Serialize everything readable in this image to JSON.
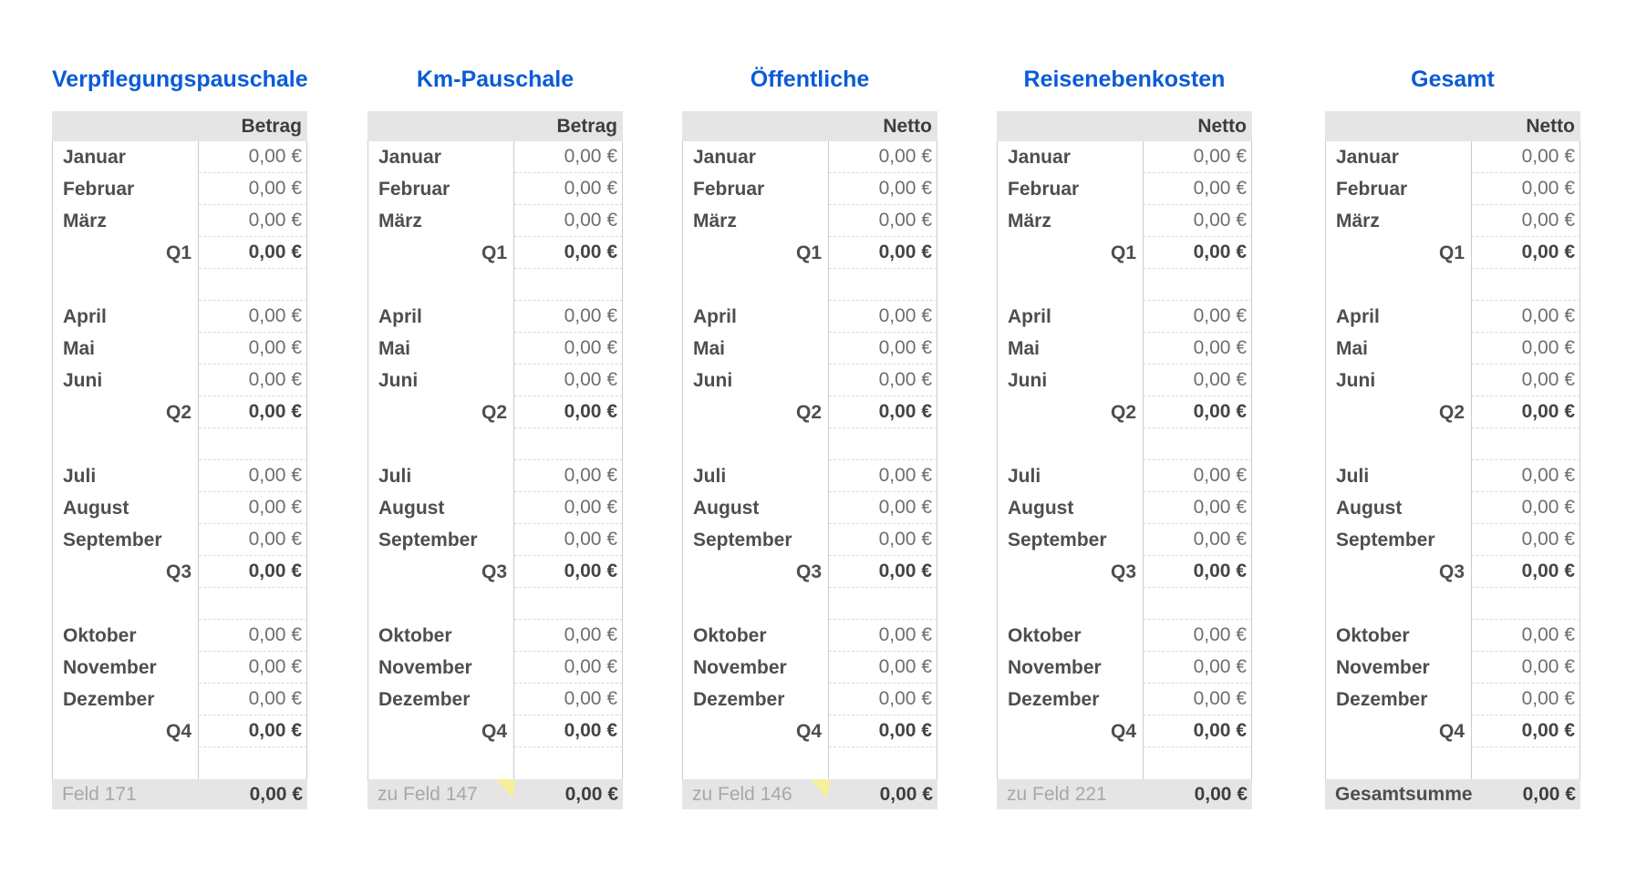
{
  "colors": {
    "title_blue": "#0b5bd7",
    "header_footer_bg": "#e5e5e5",
    "solid_border": "#cbcbcb",
    "dotted_border": "#d9d9d9",
    "comment_yellow": "#f8ef9d",
    "month_text": "#4e4e4e",
    "value_text": "#6e6e6e"
  },
  "tables": [
    {
      "title": "Verpflegungspauschale",
      "value_column_header": "Betrag",
      "rows": [
        {
          "label": "Januar",
          "value": "0,00 €",
          "style": "month"
        },
        {
          "label": "Februar",
          "value": "0,00 €",
          "style": "month"
        },
        {
          "label": "März",
          "value": "0,00 €",
          "style": "month"
        },
        {
          "label": "Q1",
          "value": "0,00 €",
          "style": "quarter"
        },
        {
          "label": "",
          "value": "",
          "style": "spacer"
        },
        {
          "label": "April",
          "value": "0,00 €",
          "style": "month"
        },
        {
          "label": "Mai",
          "value": "0,00 €",
          "style": "month"
        },
        {
          "label": "Juni",
          "value": "0,00 €",
          "style": "month"
        },
        {
          "label": "Q2",
          "value": "0,00 €",
          "style": "quarter"
        },
        {
          "label": "",
          "value": "",
          "style": "spacer"
        },
        {
          "label": "Juli",
          "value": "0,00 €",
          "style": "month"
        },
        {
          "label": "August",
          "value": "0,00 €",
          "style": "month"
        },
        {
          "label": "September",
          "value": "0,00 €",
          "style": "month"
        },
        {
          "label": "Q3",
          "value": "0,00 €",
          "style": "quarter"
        },
        {
          "label": "",
          "value": "",
          "style": "spacer"
        },
        {
          "label": "Oktober",
          "value": "0,00 €",
          "style": "month"
        },
        {
          "label": "November",
          "value": "0,00 €",
          "style": "month"
        },
        {
          "label": "Dezember",
          "value": "0,00 €",
          "style": "month"
        },
        {
          "label": "Q4",
          "value": "0,00 €",
          "style": "quarter"
        },
        {
          "label": "",
          "value": "",
          "style": "spacer"
        }
      ],
      "footer": {
        "label": "Feld 171",
        "value": "0,00 €",
        "label_bold": false,
        "comment_marker": false
      }
    },
    {
      "title": "Km-Pauschale",
      "value_column_header": "Betrag",
      "rows": [
        {
          "label": "Januar",
          "value": "0,00 €",
          "style": "month"
        },
        {
          "label": "Februar",
          "value": "0,00 €",
          "style": "month"
        },
        {
          "label": "März",
          "value": "0,00 €",
          "style": "month"
        },
        {
          "label": "Q1",
          "value": "0,00 €",
          "style": "quarter"
        },
        {
          "label": "",
          "value": "",
          "style": "spacer"
        },
        {
          "label": "April",
          "value": "0,00 €",
          "style": "month"
        },
        {
          "label": "Mai",
          "value": "0,00 €",
          "style": "month"
        },
        {
          "label": "Juni",
          "value": "0,00 €",
          "style": "month"
        },
        {
          "label": "Q2",
          "value": "0,00 €",
          "style": "quarter"
        },
        {
          "label": "",
          "value": "",
          "style": "spacer"
        },
        {
          "label": "Juli",
          "value": "0,00 €",
          "style": "month"
        },
        {
          "label": "August",
          "value": "0,00 €",
          "style": "month"
        },
        {
          "label": "September",
          "value": "0,00 €",
          "style": "month"
        },
        {
          "label": "Q3",
          "value": "0,00 €",
          "style": "quarter"
        },
        {
          "label": "",
          "value": "",
          "style": "spacer"
        },
        {
          "label": "Oktober",
          "value": "0,00 €",
          "style": "month"
        },
        {
          "label": "November",
          "value": "0,00 €",
          "style": "month"
        },
        {
          "label": "Dezember",
          "value": "0,00 €",
          "style": "month"
        },
        {
          "label": "Q4",
          "value": "0,00 €",
          "style": "quarter"
        },
        {
          "label": "",
          "value": "",
          "style": "spacer"
        }
      ],
      "footer": {
        "label": "zu Feld 147",
        "value": "0,00 €",
        "label_bold": false,
        "comment_marker": true
      }
    },
    {
      "title": "Öffentliche",
      "value_column_header": "Netto",
      "rows": [
        {
          "label": "Januar",
          "value": "0,00 €",
          "style": "month"
        },
        {
          "label": "Februar",
          "value": "0,00 €",
          "style": "month"
        },
        {
          "label": "März",
          "value": "0,00 €",
          "style": "month"
        },
        {
          "label": "Q1",
          "value": "0,00 €",
          "style": "quarter"
        },
        {
          "label": "",
          "value": "",
          "style": "spacer"
        },
        {
          "label": "April",
          "value": "0,00 €",
          "style": "month"
        },
        {
          "label": "Mai",
          "value": "0,00 €",
          "style": "month"
        },
        {
          "label": "Juni",
          "value": "0,00 €",
          "style": "month"
        },
        {
          "label": "Q2",
          "value": "0,00 €",
          "style": "quarter"
        },
        {
          "label": "",
          "value": "",
          "style": "spacer"
        },
        {
          "label": "Juli",
          "value": "0,00 €",
          "style": "month"
        },
        {
          "label": "August",
          "value": "0,00 €",
          "style": "month"
        },
        {
          "label": "September",
          "value": "0,00 €",
          "style": "month"
        },
        {
          "label": "Q3",
          "value": "0,00 €",
          "style": "quarter"
        },
        {
          "label": "",
          "value": "",
          "style": "spacer"
        },
        {
          "label": "Oktober",
          "value": "0,00 €",
          "style": "month"
        },
        {
          "label": "November",
          "value": "0,00 €",
          "style": "month"
        },
        {
          "label": "Dezember",
          "value": "0,00 €",
          "style": "month"
        },
        {
          "label": "Q4",
          "value": "0,00 €",
          "style": "quarter"
        },
        {
          "label": "",
          "value": "",
          "style": "spacer"
        }
      ],
      "footer": {
        "label": "zu Feld 146",
        "value": "0,00 €",
        "label_bold": false,
        "comment_marker": true
      }
    },
    {
      "title": "Reisenebenkosten",
      "value_column_header": "Netto",
      "rows": [
        {
          "label": "Januar",
          "value": "0,00 €",
          "style": "month"
        },
        {
          "label": "Februar",
          "value": "0,00 €",
          "style": "month"
        },
        {
          "label": "März",
          "value": "0,00 €",
          "style": "month"
        },
        {
          "label": "Q1",
          "value": "0,00 €",
          "style": "quarter"
        },
        {
          "label": "",
          "value": "",
          "style": "spacer"
        },
        {
          "label": "April",
          "value": "0,00 €",
          "style": "month"
        },
        {
          "label": "Mai",
          "value": "0,00 €",
          "style": "month"
        },
        {
          "label": "Juni",
          "value": "0,00 €",
          "style": "month"
        },
        {
          "label": "Q2",
          "value": "0,00 €",
          "style": "quarter"
        },
        {
          "label": "",
          "value": "",
          "style": "spacer"
        },
        {
          "label": "Juli",
          "value": "0,00 €",
          "style": "month"
        },
        {
          "label": "August",
          "value": "0,00 €",
          "style": "month"
        },
        {
          "label": "September",
          "value": "0,00 €",
          "style": "month"
        },
        {
          "label": "Q3",
          "value": "0,00 €",
          "style": "quarter"
        },
        {
          "label": "",
          "value": "",
          "style": "spacer"
        },
        {
          "label": "Oktober",
          "value": "0,00 €",
          "style": "month"
        },
        {
          "label": "November",
          "value": "0,00 €",
          "style": "month"
        },
        {
          "label": "Dezember",
          "value": "0,00 €",
          "style": "month"
        },
        {
          "label": "Q4",
          "value": "0,00 €",
          "style": "quarter"
        },
        {
          "label": "",
          "value": "",
          "style": "spacer"
        }
      ],
      "footer": {
        "label": "zu Feld 221",
        "value": "0,00 €",
        "label_bold": false,
        "comment_marker": false
      }
    },
    {
      "title": "Gesamt",
      "value_column_header": "Netto",
      "rows": [
        {
          "label": "Januar",
          "value": "0,00 €",
          "style": "month"
        },
        {
          "label": "Februar",
          "value": "0,00 €",
          "style": "month"
        },
        {
          "label": "März",
          "value": "0,00 €",
          "style": "month"
        },
        {
          "label": "Q1",
          "value": "0,00 €",
          "style": "quarter"
        },
        {
          "label": "",
          "value": "",
          "style": "spacer"
        },
        {
          "label": "April",
          "value": "0,00 €",
          "style": "month"
        },
        {
          "label": "Mai",
          "value": "0,00 €",
          "style": "month"
        },
        {
          "label": "Juni",
          "value": "0,00 €",
          "style": "month"
        },
        {
          "label": "Q2",
          "value": "0,00 €",
          "style": "quarter"
        },
        {
          "label": "",
          "value": "",
          "style": "spacer"
        },
        {
          "label": "Juli",
          "value": "0,00 €",
          "style": "month"
        },
        {
          "label": "August",
          "value": "0,00 €",
          "style": "month"
        },
        {
          "label": "September",
          "value": "0,00 €",
          "style": "month"
        },
        {
          "label": "Q3",
          "value": "0,00 €",
          "style": "quarter"
        },
        {
          "label": "",
          "value": "",
          "style": "spacer"
        },
        {
          "label": "Oktober",
          "value": "0,00 €",
          "style": "month"
        },
        {
          "label": "November",
          "value": "0,00 €",
          "style": "month"
        },
        {
          "label": "Dezember",
          "value": "0,00 €",
          "style": "month"
        },
        {
          "label": "Q4",
          "value": "0,00 €",
          "style": "quarter"
        },
        {
          "label": "",
          "value": "",
          "style": "spacer"
        }
      ],
      "footer": {
        "label": "Gesamtsumme",
        "value": "0,00 €",
        "label_bold": true,
        "comment_marker": false
      }
    }
  ]
}
